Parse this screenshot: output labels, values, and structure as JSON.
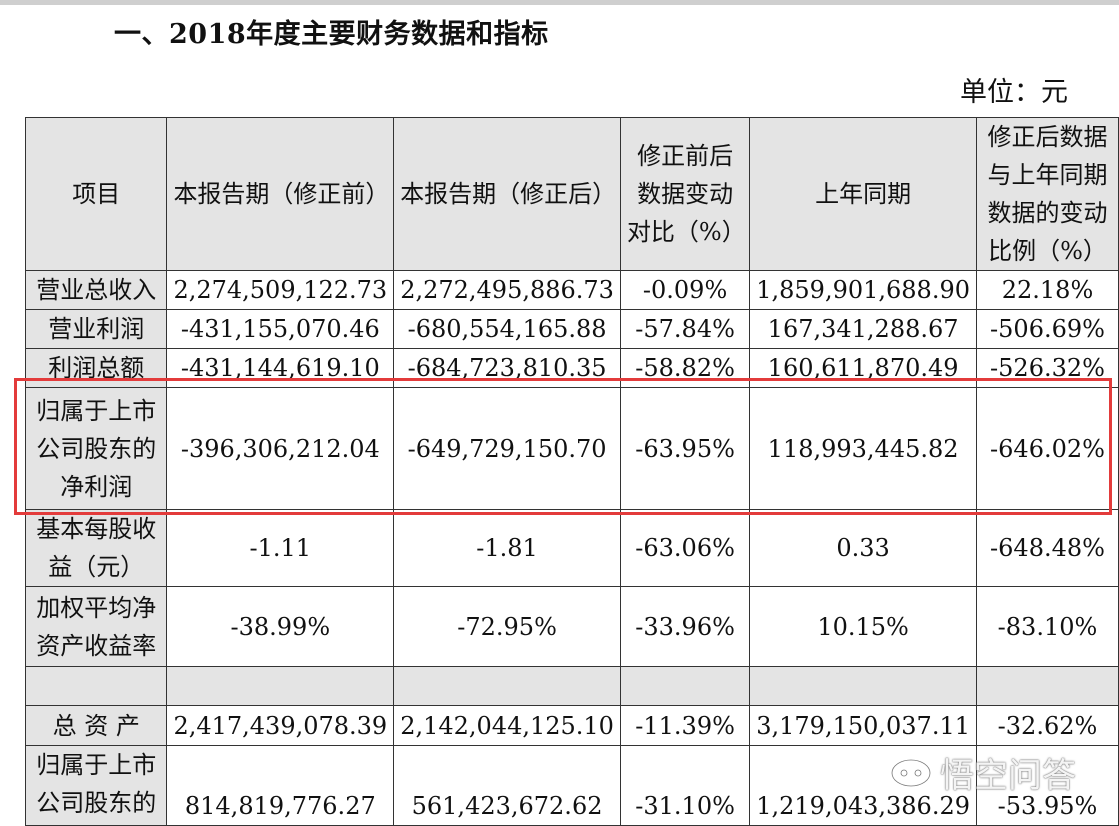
{
  "heading": "一、2018年度主要财务数据和指标",
  "unit": "单位：元",
  "table": {
    "headers": [
      "项目",
      "本报告期（修正前）",
      "本报告期（修正后）",
      "修正前后数据变动对比（%）",
      "上年同期",
      "修正后数据与上年同期数据的变动比例（%）"
    ],
    "rows": [
      [
        "营业总收入",
        "2,274,509,122.73",
        "2,272,495,886.73",
        "-0.09%",
        "1,859,901,688.90",
        "22.18%"
      ],
      [
        "营业利润",
        "-431,155,070.46",
        "-680,554,165.88",
        "-57.84%",
        "167,341,288.67",
        "-506.69%"
      ],
      [
        "利润总额",
        "-431,144,619.10",
        "-684,723,810.35",
        "-58.82%",
        "160,611,870.49",
        "-526.32%"
      ],
      [
        "归属于上市公司股东的净利润",
        "-396,306,212.04",
        "-649,729,150.70",
        "-63.95%",
        "118,993,445.82",
        "-646.02%"
      ],
      [
        "基本每股收益（元）",
        "-1.11",
        "-1.81",
        "-63.06%",
        "0.33",
        "-648.48%"
      ],
      [
        "加权平均净资产收益率",
        "-38.99%",
        "-72.95%",
        "-33.96%",
        "10.15%",
        "-83.10%"
      ],
      [
        "",
        "",
        "",
        "",
        "",
        ""
      ],
      [
        "总 资 产",
        "2,417,439,078.39",
        "2,142,044,125.10",
        "-11.39%",
        "3,179,150,037.11",
        "-32.62%"
      ],
      [
        "归属于上市公司股东的",
        "814,819,776.27",
        "561,423,672.62",
        "-31.10%",
        "1,219,043,386.29",
        "-53.95%"
      ]
    ]
  },
  "highlight_color": "#e33b3b",
  "watermark": {
    "text": "悟空问答",
    "icon": "wukong-logo-icon"
  }
}
